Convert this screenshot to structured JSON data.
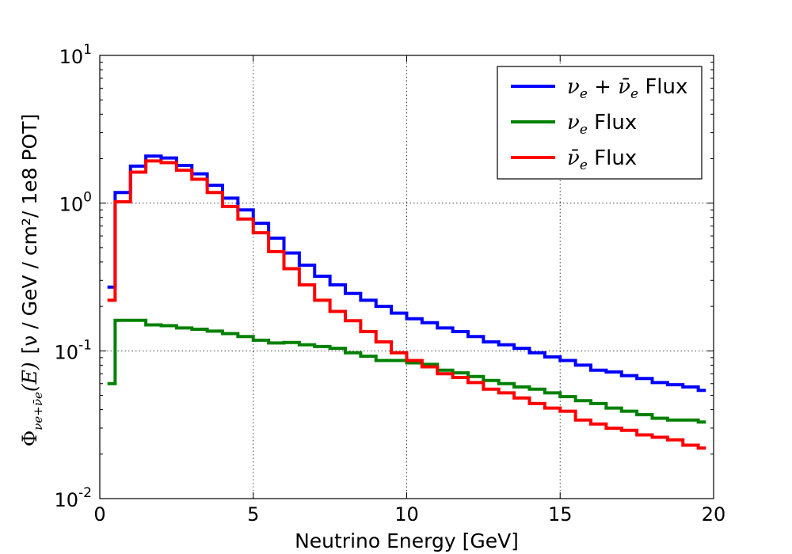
{
  "chart_data": {
    "type": "line",
    "step": true,
    "xlabel": "Neutrino Energy [GeV]",
    "ylabel": {
      "phi": "Φ",
      "subscript": "νe+ν̄e",
      "argument": "(E)",
      "units": "[ν / GeV / cm²/ 1e8 POT]"
    },
    "xlim": [
      0,
      20
    ],
    "ylim": [
      0.01,
      10
    ],
    "yscale": "log",
    "grid": true,
    "legend_position": "top-right",
    "x_ticks": [
      {
        "value": 0,
        "label": "0"
      },
      {
        "value": 5,
        "label": "5"
      },
      {
        "value": 10,
        "label": "10"
      },
      {
        "value": 15,
        "label": "15"
      },
      {
        "value": 20,
        "label": "20"
      }
    ],
    "y_ticks": [
      {
        "value": 0.01,
        "base": "10",
        "exp": "-2"
      },
      {
        "value": 0.1,
        "base": "10",
        "exp": "-1"
      },
      {
        "value": 1,
        "base": "10",
        "exp": "0"
      },
      {
        "value": 10,
        "base": "10",
        "exp": "1"
      }
    ],
    "bin_edges": [
      0.25,
      0.5,
      1,
      1.5,
      2,
      2.5,
      3,
      3.5,
      4,
      4.5,
      5,
      5.5,
      6,
      6.5,
      7,
      7.5,
      8,
      8.5,
      9,
      9.5,
      10,
      10.5,
      11,
      11.5,
      12,
      12.5,
      13,
      13.5,
      14,
      14.5,
      15,
      15.5,
      16,
      16.5,
      17,
      17.5,
      18,
      18.5,
      19,
      19.5,
      19.75
    ],
    "series": [
      {
        "name": "νe + ν̄e Flux",
        "color": "#0000ff",
        "values": [
          0.27,
          1.18,
          1.78,
          2.08,
          2.02,
          1.8,
          1.58,
          1.32,
          1.08,
          0.9,
          0.73,
          0.58,
          0.46,
          0.38,
          0.32,
          0.28,
          0.245,
          0.22,
          0.2,
          0.18,
          0.165,
          0.155,
          0.143,
          0.135,
          0.125,
          0.115,
          0.11,
          0.104,
          0.097,
          0.091,
          0.086,
          0.08,
          0.074,
          0.072,
          0.068,
          0.065,
          0.061,
          0.059,
          0.057,
          0.054
        ]
      },
      {
        "name": "νe Flux",
        "color": "#008000",
        "values": [
          0.06,
          0.161,
          0.161,
          0.15,
          0.148,
          0.143,
          0.14,
          0.136,
          0.131,
          0.125,
          0.118,
          0.113,
          0.114,
          0.11,
          0.107,
          0.104,
          0.097,
          0.092,
          0.086,
          0.086,
          0.083,
          0.081,
          0.074,
          0.071,
          0.067,
          0.063,
          0.06,
          0.057,
          0.055,
          0.052,
          0.049,
          0.046,
          0.044,
          0.041,
          0.039,
          0.037,
          0.035,
          0.034,
          0.034,
          0.033
        ]
      },
      {
        "name": "ν̄e Flux",
        "color": "#ff0000",
        "values": [
          0.22,
          1.02,
          1.62,
          1.93,
          1.88,
          1.67,
          1.45,
          1.18,
          0.95,
          0.78,
          0.63,
          0.47,
          0.36,
          0.28,
          0.22,
          0.185,
          0.16,
          0.135,
          0.115,
          0.097,
          0.086,
          0.078,
          0.07,
          0.066,
          0.061,
          0.055,
          0.052,
          0.048,
          0.044,
          0.041,
          0.039,
          0.034,
          0.032,
          0.03,
          0.029,
          0.027,
          0.026,
          0.025,
          0.023,
          0.022
        ]
      }
    ]
  },
  "legend": {
    "items": [
      {
        "color": "#0000ff",
        "parts": [
          {
            "t": "ν",
            "i": true
          },
          {
            "t": "e",
            "sub": true,
            "i": true
          },
          {
            "t": " + "
          },
          {
            "t": "ν̄",
            "i": true
          },
          {
            "t": "e",
            "sub": true,
            "i": true
          },
          {
            "t": " Flux"
          }
        ]
      },
      {
        "color": "#008000",
        "parts": [
          {
            "t": "ν",
            "i": true
          },
          {
            "t": "e",
            "sub": true,
            "i": true
          },
          {
            "t": " Flux"
          }
        ]
      },
      {
        "color": "#ff0000",
        "parts": [
          {
            "t": "ν̄",
            "i": true
          },
          {
            "t": "e",
            "sub": true,
            "i": true
          },
          {
            "t": " Flux"
          }
        ]
      }
    ]
  }
}
